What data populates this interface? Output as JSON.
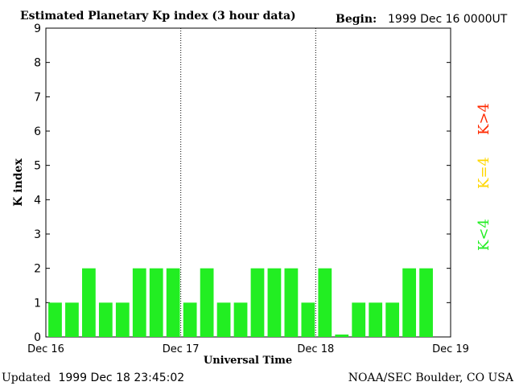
{
  "header": {
    "title": "Estimated Planetary Kp index (3 hour data)",
    "begin_label": "Begin:",
    "begin_value": "1999 Dec 16 0000UT"
  },
  "footer": {
    "updated_label": "Updated",
    "updated_value": "1999 Dec 18 23:45:02",
    "source": "NOAA/SEC Boulder, CO USA"
  },
  "legend": {
    "items": [
      {
        "label": "K>4",
        "color": "#ff2a00"
      },
      {
        "label": "K=4",
        "color": "#ffd700"
      },
      {
        "label": "K<4",
        "color": "#22ee22"
      }
    ]
  },
  "chart_data": {
    "type": "bar",
    "title": "Estimated Planetary Kp index (3 hour data)",
    "xlabel": "Universal Time",
    "ylabel": "K index",
    "ylim": [
      0,
      9
    ],
    "yticks": [
      "0",
      "1",
      "2",
      "3",
      "4",
      "5",
      "6",
      "7",
      "8",
      "9"
    ],
    "xticks": [
      "Dec 16",
      "Dec 17",
      "Dec 18",
      "Dec 19"
    ],
    "interval_hours": 3,
    "values": [
      1,
      1,
      2,
      1,
      1,
      2,
      2,
      2,
      1,
      2,
      1,
      1,
      2,
      2,
      2,
      1,
      2,
      0,
      1,
      1,
      1,
      2,
      2
    ],
    "bar_color": "#22ee22",
    "day_dividers": "dotted"
  }
}
